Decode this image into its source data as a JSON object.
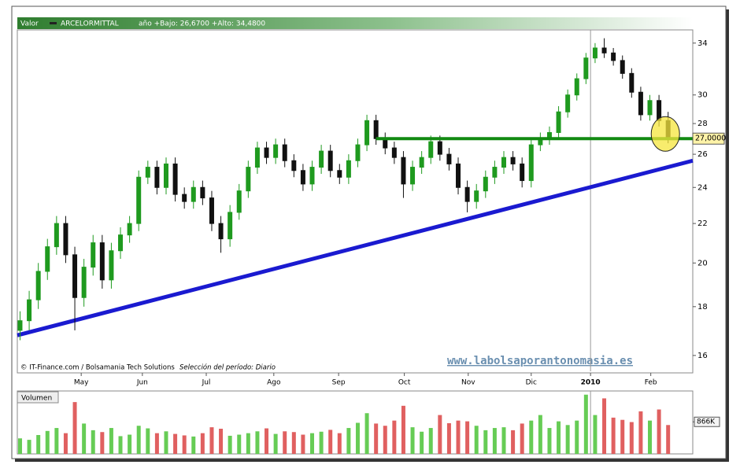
{
  "chart_data": {
    "type": "candlestick",
    "header_label": "Valor",
    "symbol": "ARCELORMITTAL",
    "range_text": "año +Bajo: 26,6700 +Alto: 34,4800",
    "credit": "© IT-Finance.com / Bolsamania Tech Solutions",
    "period_text": "Selección del período: Diario",
    "watermark": "www.labolsaporantonomasia.es",
    "volume_title": "Volumen",
    "log_scale": true,
    "ylim": [
      15.4,
      35.1
    ],
    "yticks": [
      16,
      18,
      20,
      22,
      24,
      26,
      28,
      30,
      34
    ],
    "xlim": [
      -0.3,
      73.7
    ],
    "xticks": [
      {
        "value": 6.7,
        "label": "May"
      },
      {
        "value": 13.4,
        "label": "Jun"
      },
      {
        "value": 20.4,
        "label": "Jul"
      },
      {
        "value": 27.8,
        "label": "Ago"
      },
      {
        "value": 34.9,
        "label": "Sep"
      },
      {
        "value": 42.1,
        "label": "Oct"
      },
      {
        "value": 49.1,
        "label": "Nov"
      },
      {
        "value": 56.0,
        "label": "Dic"
      },
      {
        "value": 62.5,
        "label": "2010"
      },
      {
        "value": 69.1,
        "label": "Feb"
      }
    ],
    "last_price": {
      "value": 27,
      "label": "27,0000"
    },
    "up_color": "#1f9a1f",
    "down_color": "#111111",
    "volume_up_color": "#66cc55",
    "volume_down_color": "#e06060",
    "open": [
      17.0,
      17.4,
      18.3,
      19.6,
      20.8,
      22.0,
      20.4,
      18.4,
      19.8,
      21.0,
      19.2,
      20.6,
      21.4,
      22.0,
      24.6,
      25.2,
      24.0,
      25.4,
      23.6,
      23.2,
      24.0,
      23.4,
      22.0,
      21.2,
      22.6,
      23.8,
      25.2,
      26.4,
      25.8,
      26.6,
      25.6,
      25.0,
      24.2,
      25.2,
      26.2,
      25.0,
      24.6,
      25.6,
      26.6,
      28.2,
      27.0,
      26.4,
      25.8,
      24.2,
      25.2,
      25.8,
      26.8,
      26.0,
      25.4,
      24.0,
      23.2,
      23.8,
      24.6,
      25.2,
      25.8,
      25.4,
      24.4,
      26.6,
      27.0,
      27.4,
      28.8,
      30.0,
      31.2,
      32.8,
      33.6,
      33.2,
      32.6,
      31.6,
      30.2,
      28.6,
      29.6,
      28.2
    ],
    "high": [
      17.8,
      18.7,
      20.0,
      21.2,
      22.4,
      22.4,
      20.8,
      20.2,
      21.4,
      21.4,
      21.0,
      21.8,
      22.4,
      25.0,
      25.6,
      25.6,
      25.8,
      25.8,
      24.0,
      24.4,
      24.4,
      23.8,
      22.4,
      23.0,
      24.2,
      25.6,
      26.8,
      26.8,
      27.0,
      27.0,
      26.0,
      25.4,
      25.6,
      26.6,
      26.6,
      25.4,
      26.0,
      27.0,
      28.6,
      28.6,
      27.4,
      26.8,
      26.2,
      25.6,
      26.2,
      27.2,
      27.2,
      26.4,
      25.8,
      24.4,
      24.2,
      25.0,
      25.6,
      26.2,
      26.2,
      25.8,
      27.0,
      27.4,
      27.8,
      29.2,
      30.4,
      31.6,
      33.2,
      34.0,
      34.4,
      33.6,
      33.0,
      32.0,
      30.6,
      30.0,
      30.0,
      28.8
    ],
    "low": [
      16.6,
      17.0,
      17.9,
      19.2,
      20.4,
      20.0,
      17.0,
      18.0,
      19.4,
      18.8,
      18.8,
      20.2,
      21.0,
      21.6,
      24.2,
      23.6,
      23.6,
      23.2,
      22.8,
      22.8,
      23.0,
      21.6,
      20.5,
      20.8,
      22.2,
      23.4,
      24.8,
      25.4,
      25.4,
      25.2,
      24.6,
      23.8,
      23.8,
      24.8,
      24.6,
      24.2,
      24.2,
      25.2,
      26.2,
      26.6,
      26.0,
      25.4,
      23.4,
      23.8,
      24.8,
      25.4,
      25.6,
      25.0,
      23.6,
      22.6,
      22.8,
      23.4,
      24.2,
      24.8,
      25.0,
      24.0,
      24.0,
      26.2,
      26.6,
      27.0,
      28.4,
      29.6,
      30.8,
      32.4,
      32.8,
      32.2,
      31.2,
      29.8,
      28.2,
      28.2,
      27.8,
      26.7
    ],
    "close": [
      17.4,
      18.3,
      19.6,
      20.8,
      22.0,
      20.4,
      18.4,
      19.8,
      21.0,
      19.2,
      20.6,
      21.4,
      22.0,
      24.6,
      25.2,
      24.0,
      25.4,
      23.6,
      23.2,
      24.0,
      23.4,
      22.0,
      21.2,
      22.6,
      23.8,
      25.2,
      26.4,
      25.8,
      26.6,
      25.6,
      25.0,
      24.2,
      25.2,
      26.2,
      25.0,
      24.6,
      25.6,
      26.6,
      28.2,
      27.0,
      26.4,
      25.8,
      24.2,
      25.2,
      25.8,
      26.8,
      26.0,
      25.4,
      24.0,
      23.2,
      23.8,
      24.6,
      25.2,
      25.8,
      25.4,
      24.4,
      26.6,
      27.0,
      27.4,
      28.8,
      30.0,
      31.2,
      32.8,
      33.6,
      33.2,
      32.6,
      31.6,
      30.2,
      28.6,
      29.6,
      28.2,
      27.0
    ],
    "volume": [
      420,
      380,
      510,
      620,
      700,
      560,
      1400,
      820,
      640,
      590,
      700,
      480,
      520,
      760,
      690,
      560,
      610,
      540,
      500,
      470,
      560,
      720,
      680,
      490,
      520,
      560,
      610,
      690,
      540,
      610,
      590,
      520,
      560,
      600,
      650,
      560,
      700,
      840,
      1100,
      820,
      760,
      900,
      1300,
      720,
      600,
      700,
      1050,
      830,
      900,
      880,
      760,
      640,
      700,
      720,
      640,
      820,
      900,
      1050,
      700,
      880,
      780,
      900,
      1600,
      1050,
      1500,
      980,
      920,
      860,
      1150,
      900,
      1200,
      780
    ],
    "volume_ylim": [
      0,
      1700
    ],
    "volume_yticks": [
      {
        "value": 866,
        "label": "866K"
      }
    ],
    "support_line": {
      "value": 27.0,
      "start": 39,
      "color": "#128a12"
    },
    "trend_line": {
      "start": 16.8,
      "end": 25.6,
      "color": "#1a1ad0"
    },
    "highlight_color": "#f5e63c"
  }
}
